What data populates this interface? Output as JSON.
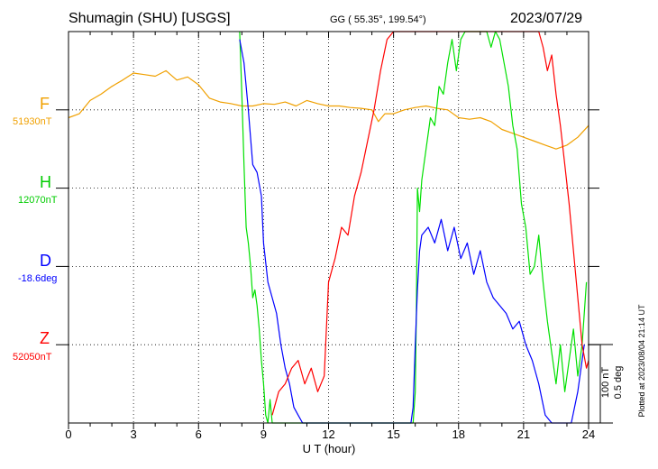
{
  "header": {
    "station": "Shumagin (SHU)  [USGS]",
    "coords": "GG ( 55.35°, 199.54°)",
    "date": "2023/07/29"
  },
  "colors": {
    "F": "#f0a000",
    "H": "#00e000",
    "D": "#0000ff",
    "Z": "#ff0000",
    "frame": "#000000"
  },
  "side_note": "Plotted at 2023/08/04 21:14 UT",
  "scale": {
    "line1": "100 nT",
    "line2": "0.5 deg"
  },
  "chart_data": {
    "type": "line",
    "xlabel": "U T (hour)",
    "xlim": [
      0,
      24
    ],
    "xticks": [
      0,
      3,
      6,
      9,
      12,
      15,
      18,
      21,
      24
    ],
    "xtick_labels": [
      "0",
      "3",
      "6",
      "9",
      "12",
      "15",
      "18",
      "21",
      "24"
    ],
    "y_units_note": "traces offset per component; 1 grid step = 100 nT / 0.5 deg",
    "series": [
      {
        "key": "F",
        "name": "F",
        "baseline_label": "51930nT",
        "row": 1,
        "points": [
          [
            0,
            -0.1
          ],
          [
            0.5,
            -0.05
          ],
          [
            1,
            0.12
          ],
          [
            1.5,
            0.2
          ],
          [
            2,
            0.3
          ],
          [
            2.5,
            0.38
          ],
          [
            3,
            0.47
          ],
          [
            3.5,
            0.45
          ],
          [
            4,
            0.43
          ],
          [
            4.5,
            0.5
          ],
          [
            5,
            0.38
          ],
          [
            5.5,
            0.42
          ],
          [
            6,
            0.32
          ],
          [
            6.5,
            0.15
          ],
          [
            7,
            0.1
          ],
          [
            7.5,
            0.08
          ],
          [
            8,
            0.05
          ],
          [
            8.5,
            0.05
          ],
          [
            9,
            0.08
          ],
          [
            9.5,
            0.07
          ],
          [
            10,
            0.1
          ],
          [
            10.5,
            0.05
          ],
          [
            11,
            0.12
          ],
          [
            11.5,
            0.08
          ],
          [
            12,
            0.05
          ],
          [
            12.5,
            0.05
          ],
          [
            13,
            0.03
          ],
          [
            13.5,
            0.02
          ],
          [
            14,
            0.0
          ],
          [
            14.3,
            -0.15
          ],
          [
            14.6,
            -0.05
          ],
          [
            15,
            -0.05
          ],
          [
            15.5,
            0.0
          ],
          [
            16,
            0.03
          ],
          [
            16.5,
            0.05
          ],
          [
            17,
            0.02
          ],
          [
            17.5,
            0.0
          ],
          [
            18,
            -0.1
          ],
          [
            18.5,
            -0.12
          ],
          [
            19,
            -0.1
          ],
          [
            19.5,
            -0.15
          ],
          [
            20,
            -0.25
          ],
          [
            20.5,
            -0.3
          ],
          [
            21,
            -0.35
          ],
          [
            21.5,
            -0.4
          ],
          [
            22,
            -0.45
          ],
          [
            22.5,
            -0.5
          ],
          [
            23,
            -0.45
          ],
          [
            23.5,
            -0.35
          ],
          [
            24,
            -0.2
          ]
        ]
      },
      {
        "key": "H",
        "name": "H",
        "baseline_label": "12070nT",
        "row": 2,
        "points": [
          [
            7.9,
            2.0
          ],
          [
            8,
            1.2
          ],
          [
            8.1,
            0.3
          ],
          [
            8.2,
            -0.5
          ],
          [
            8.3,
            -0.7
          ],
          [
            8.4,
            -1.0
          ],
          [
            8.5,
            -1.4
          ],
          [
            8.6,
            -1.3
          ],
          [
            8.7,
            -1.5
          ],
          [
            8.8,
            -1.8
          ],
          [
            8.9,
            -2.2
          ],
          [
            9,
            -2.5
          ],
          [
            9.1,
            -2.9
          ],
          [
            9.2,
            -3.1
          ],
          [
            9.3,
            -2.7
          ],
          [
            9.4,
            -3.0
          ],
          [
            15.9,
            -3.3
          ],
          [
            16.0,
            -2.6
          ],
          [
            16.05,
            -1.6
          ],
          [
            16.1,
            0.0
          ],
          [
            16.2,
            -0.3
          ],
          [
            16.3,
            0.1
          ],
          [
            16.5,
            0.5
          ],
          [
            16.7,
            0.9
          ],
          [
            16.9,
            0.8
          ],
          [
            17.1,
            1.3
          ],
          [
            17.3,
            1.2
          ],
          [
            17.5,
            1.6
          ],
          [
            17.7,
            1.9
          ],
          [
            17.9,
            1.5
          ],
          [
            18.1,
            1.9
          ],
          [
            18.3,
            2.2
          ],
          [
            18.5,
            2.5
          ],
          [
            18.7,
            2.1
          ],
          [
            18.9,
            2.6
          ],
          [
            19.1,
            2.2
          ],
          [
            19.3,
            2.4
          ],
          [
            19.5,
            1.8
          ],
          [
            19.7,
            2.3
          ],
          [
            19.9,
            1.9
          ],
          [
            20.1,
            1.6
          ],
          [
            20.3,
            1.3
          ],
          [
            20.5,
            0.8
          ],
          [
            20.7,
            0.5
          ],
          [
            20.9,
            -0.2
          ],
          [
            21.1,
            -0.5
          ],
          [
            21.3,
            -1.1
          ],
          [
            21.5,
            -1.0
          ],
          [
            21.7,
            -0.6
          ],
          [
            21.9,
            -1.2
          ],
          [
            22.1,
            -1.7
          ],
          [
            22.3,
            -2.1
          ],
          [
            22.5,
            -2.5
          ],
          [
            22.7,
            -2.0
          ],
          [
            22.9,
            -2.6
          ],
          [
            23.1,
            -2.2
          ],
          [
            23.3,
            -1.8
          ],
          [
            23.5,
            -2.4
          ],
          [
            23.7,
            -2.0
          ],
          [
            23.9,
            -1.2
          ]
        ]
      },
      {
        "key": "D",
        "name": "D",
        "baseline_label": "-18.6deg",
        "row": 3,
        "points": [
          [
            7.9,
            2.9
          ],
          [
            8.1,
            2.6
          ],
          [
            8.3,
            2.0
          ],
          [
            8.5,
            1.3
          ],
          [
            8.7,
            1.2
          ],
          [
            8.9,
            0.9
          ],
          [
            9.0,
            0.3
          ],
          [
            9.2,
            -0.2
          ],
          [
            9.4,
            -0.4
          ],
          [
            9.6,
            -0.6
          ],
          [
            9.8,
            -1.0
          ],
          [
            10,
            -1.3
          ],
          [
            10.2,
            -1.5
          ],
          [
            10.4,
            -1.8
          ],
          [
            10.6,
            -1.9
          ],
          [
            10.8,
            -2.0
          ],
          [
            11,
            -2.3
          ],
          [
            11.2,
            -2.6
          ],
          [
            11.4,
            -2.8
          ],
          [
            15.8,
            -2.5
          ],
          [
            15.9,
            -1.8
          ],
          [
            16.0,
            -1.0
          ],
          [
            16.1,
            -0.3
          ],
          [
            16.2,
            0.2
          ],
          [
            16.3,
            0.4
          ],
          [
            16.6,
            0.5
          ],
          [
            16.9,
            0.3
          ],
          [
            17.2,
            0.6
          ],
          [
            17.5,
            0.2
          ],
          [
            17.8,
            0.5
          ],
          [
            18.1,
            0.1
          ],
          [
            18.4,
            0.3
          ],
          [
            18.7,
            -0.1
          ],
          [
            19.0,
            0.2
          ],
          [
            19.3,
            -0.2
          ],
          [
            19.6,
            -0.4
          ],
          [
            19.9,
            -0.5
          ],
          [
            20.2,
            -0.6
          ],
          [
            20.5,
            -0.8
          ],
          [
            20.8,
            -0.7
          ],
          [
            21.1,
            -1.0
          ],
          [
            21.4,
            -1.2
          ],
          [
            21.7,
            -1.5
          ],
          [
            22.0,
            -1.9
          ],
          [
            22.3,
            -2.2
          ],
          [
            22.6,
            -2.6
          ],
          [
            22.9,
            -2.4
          ],
          [
            23.2,
            -2.0
          ],
          [
            23.5,
            -1.6
          ],
          [
            23.8,
            -1.0
          ]
        ]
      },
      {
        "key": "Z",
        "name": "Z",
        "baseline_label": "52050nT",
        "row": 4,
        "points": [
          [
            9.4,
            -0.9
          ],
          [
            9.7,
            -0.6
          ],
          [
            10.0,
            -0.5
          ],
          [
            10.3,
            -0.3
          ],
          [
            10.6,
            -0.2
          ],
          [
            10.9,
            -0.5
          ],
          [
            11.2,
            -0.3
          ],
          [
            11.5,
            -0.6
          ],
          [
            11.8,
            -0.4
          ],
          [
            12.0,
            0.8
          ],
          [
            12.3,
            1.1
          ],
          [
            12.6,
            1.5
          ],
          [
            12.9,
            1.4
          ],
          [
            13.2,
            1.9
          ],
          [
            13.5,
            2.2
          ],
          [
            13.8,
            2.6
          ],
          [
            14.1,
            3.0
          ],
          [
            14.4,
            3.5
          ],
          [
            14.7,
            3.9
          ],
          [
            15.0,
            4.1
          ],
          [
            21.7,
            4.1
          ],
          [
            21.9,
            3.8
          ],
          [
            22.1,
            3.5
          ],
          [
            22.3,
            3.7
          ],
          [
            22.5,
            3.2
          ],
          [
            22.7,
            2.8
          ],
          [
            22.9,
            2.3
          ],
          [
            23.1,
            1.8
          ],
          [
            23.3,
            1.2
          ],
          [
            23.5,
            0.6
          ],
          [
            23.7,
            0.0
          ],
          [
            23.9,
            -0.3
          ],
          [
            24.0,
            -0.2
          ]
        ]
      }
    ]
  }
}
